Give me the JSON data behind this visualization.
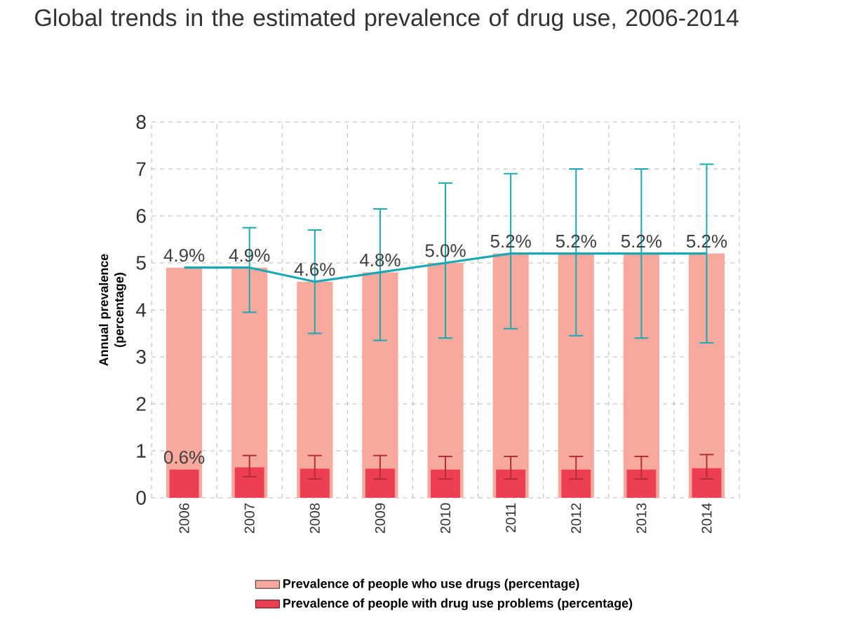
{
  "chart_data": {
    "type": "bar",
    "title": "Global trends in the estimated prevalence of drug use, 2006-2014",
    "ylabel": "Annual prevalence (percentage)",
    "categories": [
      "2006",
      "2007",
      "2008",
      "2009",
      "2010",
      "2011",
      "2012",
      "2013",
      "2014"
    ],
    "series": [
      {
        "name": "Prevalence of people who use drugs (percentage)",
        "color": "#f7a99d",
        "values": [
          4.9,
          4.9,
          4.6,
          4.8,
          5.0,
          5.2,
          5.2,
          5.2,
          5.2
        ]
      },
      {
        "name": "Prevalence of people with drug use problems (percentage)",
        "color": "#ee3e52",
        "values": [
          0.6,
          0.65,
          0.62,
          0.62,
          0.6,
          0.6,
          0.6,
          0.6,
          0.63
        ],
        "errors": [
          null,
          [
            0.45,
            0.9
          ],
          [
            0.4,
            0.9
          ],
          [
            0.4,
            0.9
          ],
          [
            0.4,
            0.88
          ],
          [
            0.4,
            0.88
          ],
          [
            0.4,
            0.88
          ],
          [
            0.4,
            0.88
          ],
          [
            0.4,
            0.92
          ]
        ],
        "value_labels": [
          "0.6%",
          null,
          null,
          null,
          null,
          null,
          null,
          null,
          null
        ]
      },
      {
        "type": "line",
        "color": "#1aa8b4",
        "values": [
          4.9,
          4.9,
          4.6,
          4.8,
          5.0,
          5.2,
          5.2,
          5.2,
          5.2
        ],
        "errors": [
          null,
          [
            3.95,
            5.75
          ],
          [
            3.5,
            5.7
          ],
          [
            3.35,
            6.15
          ],
          [
            3.4,
            6.7
          ],
          [
            3.6,
            6.9
          ],
          [
            3.45,
            7.0
          ],
          [
            3.4,
            7.0
          ],
          [
            3.3,
            7.1
          ]
        ],
        "value_labels": [
          "4.9%",
          "4.9%",
          "4.6%",
          "4.8%",
          "5.0%",
          "5.2%",
          "5.2%",
          "5.2%",
          "5.2%"
        ]
      }
    ],
    "ylim": [
      0,
      8
    ],
    "yticks": [
      0,
      1,
      2,
      3,
      4,
      5,
      6,
      7,
      8
    ],
    "grid": true,
    "legend": "bottom"
  }
}
